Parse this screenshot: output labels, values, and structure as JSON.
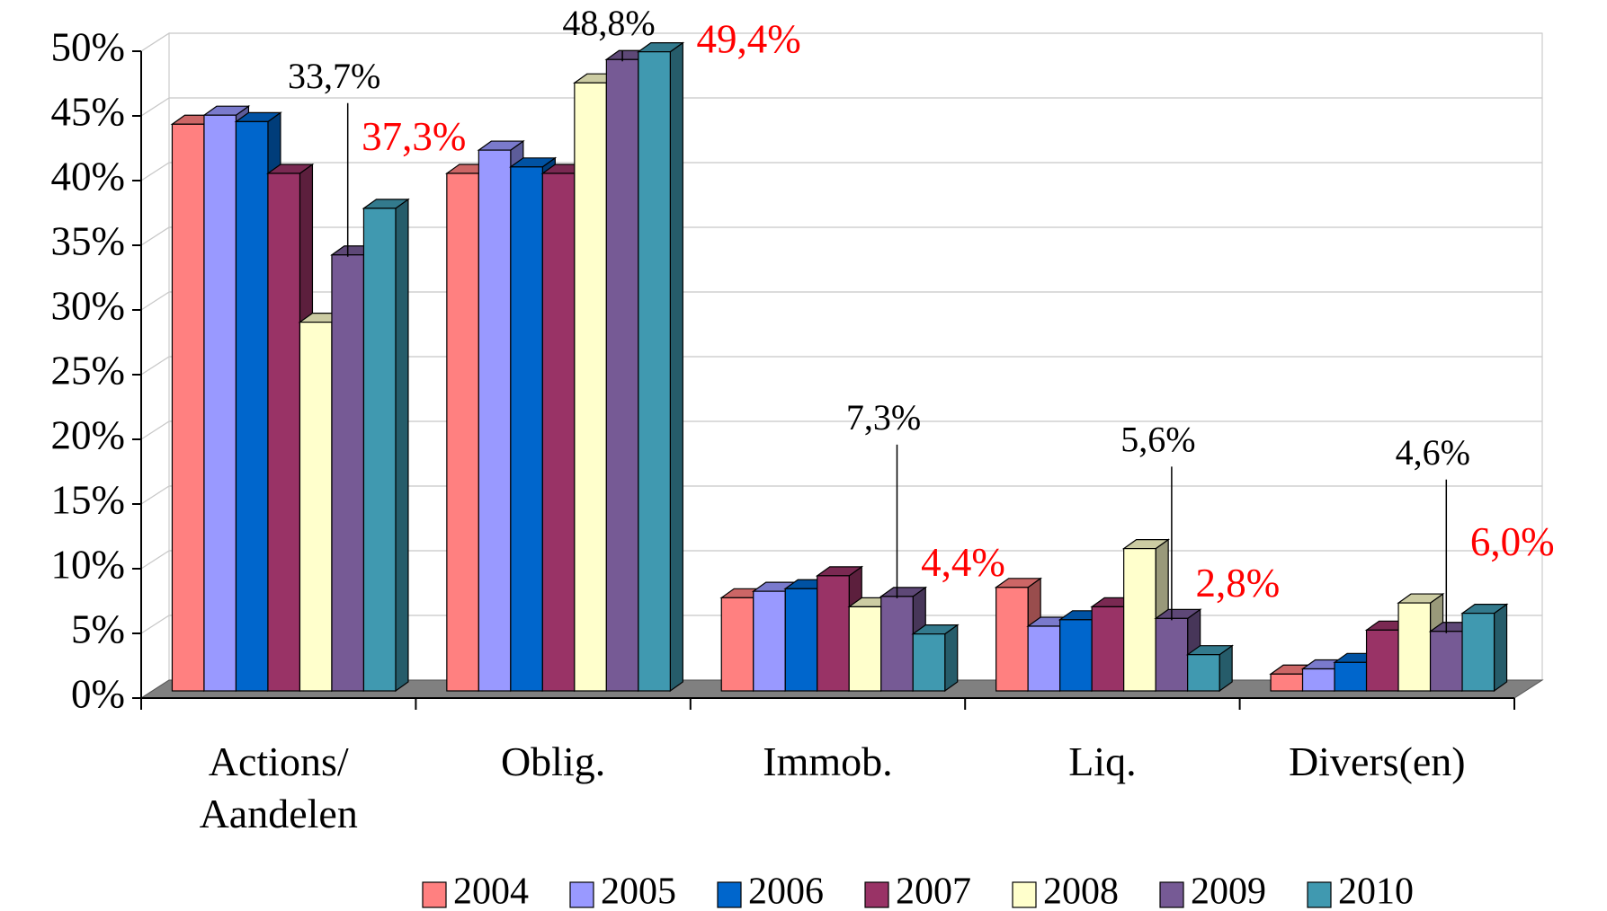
{
  "chart_data": {
    "type": "bar3d",
    "categories": [
      "Actions/ Aandelen",
      "Oblig.",
      "Immob.",
      "Liq.",
      "Divers(en)"
    ],
    "series": [
      {
        "name": "2004",
        "color": "#ff8080",
        "values": [
          43.8,
          40.0,
          7.2,
          8.0,
          1.3
        ]
      },
      {
        "name": "2005",
        "color": "#9999ff",
        "values": [
          44.5,
          41.8,
          7.7,
          5.0,
          1.7
        ]
      },
      {
        "name": "2006",
        "color": "#0066cc",
        "values": [
          44.0,
          40.5,
          7.9,
          5.5,
          2.2
        ]
      },
      {
        "name": "2007",
        "color": "#993366",
        "values": [
          40.0,
          40.0,
          8.9,
          6.5,
          4.7
        ]
      },
      {
        "name": "2008",
        "color": "#ffffcc",
        "values": [
          28.5,
          47.0,
          6.5,
          11.0,
          6.8
        ]
      },
      {
        "name": "2009",
        "color": "#765a95",
        "values": [
          33.7,
          48.8,
          7.3,
          5.6,
          4.6
        ],
        "value_labels": [
          "33,7%",
          "48,8%",
          "7,3%",
          "5,6%",
          "4,6%"
        ],
        "label_color": "#000000"
      },
      {
        "name": "2010",
        "color": "#4099b0",
        "values": [
          37.3,
          49.4,
          4.4,
          2.8,
          6.0
        ],
        "value_labels": [
          "37,3%",
          "49,4%",
          "4,4%",
          "2,8%",
          "6,0%"
        ],
        "label_color": "#ff0000"
      }
    ],
    "ylim": [
      0,
      50
    ],
    "yticks": [
      {
        "value": 0,
        "label": "0%"
      },
      {
        "value": 5,
        "label": "5%"
      },
      {
        "value": 10,
        "label": "10%"
      },
      {
        "value": 15,
        "label": "15%"
      },
      {
        "value": 20,
        "label": "20%"
      },
      {
        "value": 25,
        "label": "25%"
      },
      {
        "value": 30,
        "label": "30%"
      },
      {
        "value": 35,
        "label": "35%"
      },
      {
        "value": 40,
        "label": "40%"
      },
      {
        "value": 45,
        "label": "45%"
      },
      {
        "value": 50,
        "label": "50%"
      }
    ],
    "grid": true,
    "legend": "bottom"
  }
}
